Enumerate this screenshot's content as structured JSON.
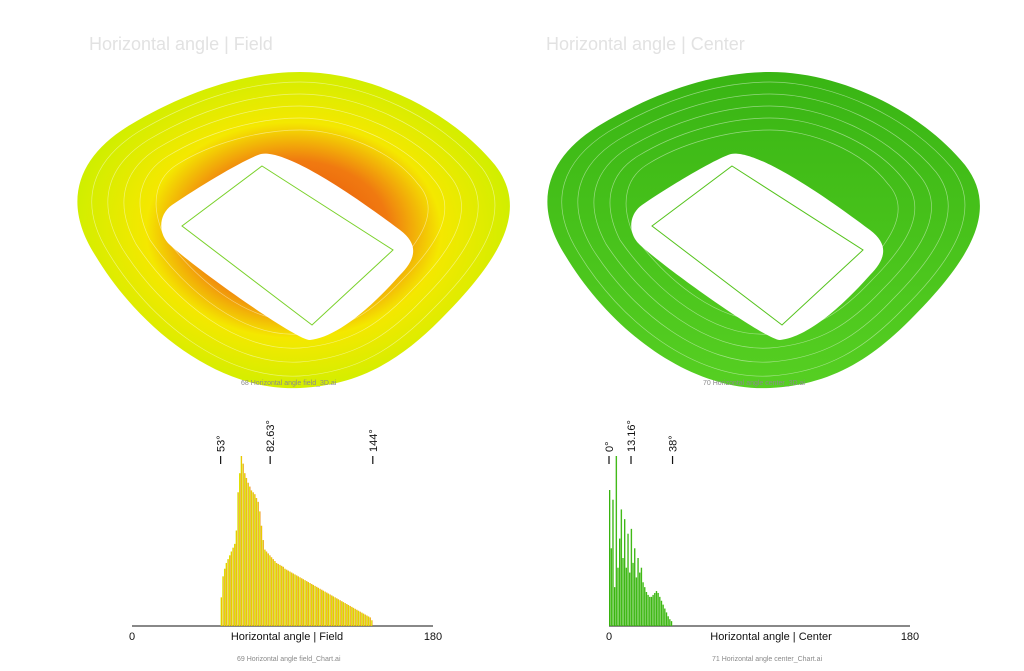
{
  "panels": {
    "left": {
      "title": "Horizontal angle | Field",
      "caption_3d": "68 Horizontal angle field_3D.ai",
      "caption_chart": "69 Horizontal angle field_Chart.ai"
    },
    "right": {
      "title": "Horizontal angle | Center",
      "caption_3d": "70 Horizontal angle center_3D.ai",
      "caption_chart": "71 Horizontal angle center_Chart.ai"
    }
  },
  "colors": {
    "field_low": "#c8f000",
    "field_mid": "#f4e800",
    "field_high": "#e8480a",
    "center_dark": "#2fa80e",
    "center_light": "#7fe040"
  },
  "chart_data": [
    {
      "type": "bar",
      "title": "",
      "xlabel": "Horizontal angle | Field",
      "ylabel": "",
      "xlim": [
        0,
        180
      ],
      "x_ticks": [
        "0",
        "180"
      ],
      "annotations": [
        "53°",
        "82.63°",
        "144°"
      ],
      "annotation_values": [
        53,
        82.63,
        144
      ],
      "bin_start": 53,
      "bin_width": 1,
      "values": [
        30,
        52,
        60,
        66,
        70,
        74,
        78,
        82,
        86,
        100,
        140,
        160,
        178,
        170,
        160,
        155,
        150,
        146,
        142,
        140,
        138,
        134,
        130,
        120,
        105,
        90,
        80,
        78,
        76,
        74,
        72,
        70,
        68,
        66,
        65,
        64,
        63,
        62,
        60,
        59,
        58,
        57,
        56,
        55,
        54,
        53,
        52,
        51,
        50,
        49,
        48,
        47,
        46,
        45,
        44,
        43,
        42,
        41,
        40,
        39,
        38,
        37,
        36,
        35,
        34,
        33,
        32,
        31,
        30,
        29,
        28,
        27,
        26,
        25,
        24,
        23,
        22,
        21,
        20,
        19,
        18,
        17,
        16,
        15,
        14,
        13,
        12,
        11,
        10,
        9,
        6
      ]
    },
    {
      "type": "bar",
      "title": "",
      "xlabel": "Horizontal angle | Center",
      "ylabel": "",
      "xlim": [
        0,
        180
      ],
      "x_ticks": [
        "0",
        "180"
      ],
      "annotations": [
        "0°",
        "13.16°",
        "38°"
      ],
      "annotation_values": [
        0,
        13.16,
        38
      ],
      "bin_start": 0,
      "bin_width": 1,
      "values": [
        140,
        80,
        130,
        40,
        175,
        60,
        90,
        120,
        70,
        110,
        60,
        95,
        55,
        100,
        65,
        80,
        50,
        70,
        55,
        60,
        45,
        40,
        35,
        32,
        30,
        30,
        32,
        34,
        36,
        34,
        30,
        26,
        22,
        18,
        14,
        10,
        7,
        5
      ]
    }
  ]
}
